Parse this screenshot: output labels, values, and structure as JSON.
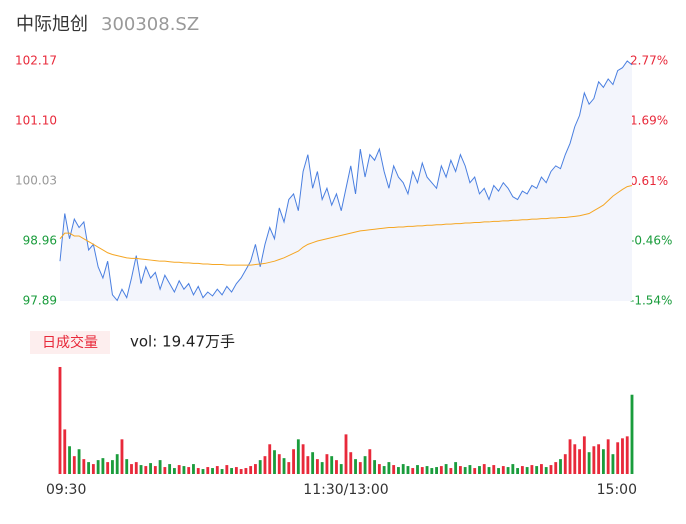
{
  "header": {
    "title": "中际旭创",
    "code": "300308.SZ",
    "volume_button": "日成交量",
    "volume_text": "vol: 19.47万手"
  },
  "chart_data": [
    {
      "type": "line",
      "series": [
        {
          "name": "price",
          "color": "#4a7fe0",
          "values": [
            98.6,
            99.45,
            99.0,
            99.35,
            99.2,
            99.3,
            98.8,
            98.9,
            98.5,
            98.3,
            98.6,
            98.0,
            97.9,
            98.1,
            97.95,
            98.3,
            98.7,
            98.2,
            98.5,
            98.3,
            98.4,
            98.1,
            98.35,
            98.2,
            98.05,
            98.25,
            98.1,
            98.2,
            98.0,
            98.15,
            97.95,
            98.05,
            97.98,
            98.1,
            98.0,
            98.15,
            98.05,
            98.2,
            98.3,
            98.45,
            98.6,
            98.9,
            98.5,
            98.9,
            99.2,
            99.0,
            99.55,
            99.3,
            99.7,
            99.8,
            99.5,
            100.2,
            100.5,
            99.9,
            100.2,
            99.7,
            99.9,
            99.6,
            99.8,
            99.5,
            99.9,
            100.3,
            99.8,
            100.6,
            100.1,
            100.5,
            100.4,
            100.6,
            100.2,
            99.9,
            100.3,
            100.1,
            100.0,
            99.8,
            100.2,
            100.0,
            100.35,
            100.1,
            100.0,
            99.9,
            100.3,
            100.1,
            100.4,
            100.2,
            100.5,
            100.3,
            100.0,
            100.1,
            99.8,
            99.9,
            99.7,
            99.95,
            99.85,
            100.0,
            99.9,
            99.75,
            99.7,
            99.85,
            99.8,
            99.95,
            99.9,
            100.1,
            100.0,
            100.2,
            100.3,
            100.25,
            100.5,
            100.7,
            101.0,
            101.2,
            101.6,
            101.4,
            101.5,
            101.8,
            101.7,
            101.85,
            101.75,
            102.0,
            102.05,
            102.17,
            102.1
          ]
        },
        {
          "name": "average",
          "color": "#f5a623",
          "values": [
            99.0,
            99.1,
            99.1,
            99.05,
            99.05,
            99.0,
            98.95,
            98.9,
            98.85,
            98.8,
            98.75,
            98.72,
            98.7,
            98.68,
            98.66,
            98.65,
            98.65,
            98.64,
            98.63,
            98.62,
            98.61,
            98.6,
            98.6,
            98.59,
            98.58,
            98.58,
            98.57,
            98.57,
            98.56,
            98.56,
            98.55,
            98.55,
            98.54,
            98.54,
            98.54,
            98.53,
            98.53,
            98.53,
            98.53,
            98.53,
            98.53,
            98.54,
            98.55,
            98.56,
            98.58,
            98.6,
            98.63,
            98.66,
            98.7,
            98.74,
            98.78,
            98.85,
            98.9,
            98.93,
            98.96,
            98.98,
            99.0,
            99.02,
            99.04,
            99.06,
            99.08,
            99.1,
            99.12,
            99.14,
            99.15,
            99.16,
            99.17,
            99.18,
            99.19,
            99.2,
            99.2,
            99.21,
            99.21,
            99.22,
            99.22,
            99.23,
            99.23,
            99.24,
            99.24,
            99.25,
            99.25,
            99.26,
            99.26,
            99.27,
            99.27,
            99.28,
            99.28,
            99.29,
            99.29,
            99.3,
            99.3,
            99.31,
            99.31,
            99.32,
            99.32,
            99.33,
            99.33,
            99.34,
            99.34,
            99.35,
            99.35,
            99.36,
            99.36,
            99.37,
            99.37,
            99.38,
            99.38,
            99.39,
            99.4,
            99.41,
            99.43,
            99.45,
            99.5,
            99.55,
            99.6,
            99.68,
            99.76,
            99.82,
            99.88,
            99.93,
            99.95
          ]
        }
      ],
      "fill_color": "#f3f5fc",
      "up_color": "#e8293a",
      "down_color": "#1a9c3c",
      "flat_color": "#999999",
      "ylim": [
        97.89,
        102.17
      ],
      "yticks": [
        {
          "value": 102.17,
          "label": "102.17"
        },
        {
          "value": 101.1,
          "label": "101.10"
        },
        {
          "value": 100.03,
          "label": "100.03"
        },
        {
          "value": 98.96,
          "label": "98.96"
        },
        {
          "value": 97.89,
          "label": "97.89"
        }
      ],
      "y2lim": [
        -1.54,
        2.77
      ],
      "y2ticks": [
        {
          "value": 2.77,
          "label": "2.77%"
        },
        {
          "value": 1.69,
          "label": "1.69%"
        },
        {
          "value": 0.61,
          "label": "0.61%"
        },
        {
          "value": -0.46,
          "label": "-0.46%"
        },
        {
          "value": -1.54,
          "label": "-1.54%"
        }
      ]
    },
    {
      "type": "bar",
      "values": [
        108,
        45,
        28,
        18,
        25,
        15,
        12,
        10,
        14,
        16,
        12,
        14,
        20,
        35,
        15,
        10,
        12,
        9,
        8,
        11,
        8,
        14,
        7,
        10,
        6,
        9,
        8,
        7,
        10,
        6,
        5,
        7,
        6,
        8,
        5,
        9,
        6,
        7,
        5,
        6,
        8,
        10,
        14,
        18,
        30,
        24,
        20,
        16,
        12,
        25,
        35,
        30,
        18,
        22,
        15,
        12,
        20,
        18,
        14,
        10,
        40,
        22,
        15,
        12,
        18,
        25,
        14,
        10,
        8,
        12,
        9,
        7,
        10,
        8,
        6,
        9,
        7,
        8,
        6,
        7,
        8,
        10,
        6,
        12,
        8,
        7,
        9,
        6,
        8,
        10,
        7,
        9,
        6,
        8,
        7,
        10,
        6,
        8,
        7,
        9,
        8,
        10,
        7,
        9,
        12,
        15,
        20,
        35,
        30,
        25,
        38,
        22,
        28,
        30,
        25,
        35,
        20,
        32,
        36,
        38,
        80
      ],
      "ylim": [
        0,
        110
      ],
      "xlim": [
        0,
        120
      ],
      "xticks": [
        {
          "value": 0,
          "label": "09:30"
        },
        {
          "value": 60,
          "label": "11:30/13:00"
        },
        {
          "value": 120,
          "label": "15:00"
        }
      ]
    }
  ]
}
